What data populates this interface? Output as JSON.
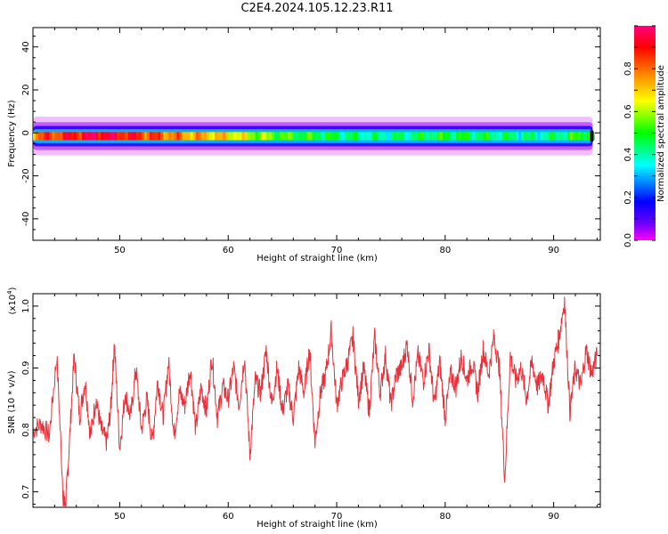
{
  "title": "C2E4.2024.105.12.23.R11",
  "chart_data": [
    {
      "type": "heatmap",
      "xlabel": "Height of straight line (km)",
      "ylabel": "Frequency (Hz)",
      "xlim": [
        42,
        94.3
      ],
      "ylim": [
        -50,
        49
      ],
      "xticks": [
        50,
        60,
        70,
        80,
        90
      ],
      "yticks": [
        -40,
        -20,
        0,
        20,
        40
      ],
      "band_center_hz": -1.5,
      "band_halfwidth_hz": 2.5,
      "colorbar": {
        "label": "Normalized spectral amplitude",
        "range": [
          0,
          1
        ],
        "ticks": [
          0.0,
          0.2,
          0.4,
          0.6,
          0.8
        ],
        "colormap": [
          "#ff00ff",
          "#6a00ff",
          "#0000ff",
          "#00ffff",
          "#00ff00",
          "#ffff00",
          "#ff8000",
          "#ff0000",
          "#ff0080"
        ]
      },
      "intensity_profile": [
        {
          "x": 42,
          "v": 0.8
        },
        {
          "x": 44,
          "v": 0.85
        },
        {
          "x": 46,
          "v": 0.9
        },
        {
          "x": 48,
          "v": 0.95
        },
        {
          "x": 50,
          "v": 0.9
        },
        {
          "x": 52,
          "v": 0.85
        },
        {
          "x": 54,
          "v": 0.8
        },
        {
          "x": 56,
          "v": 0.75
        },
        {
          "x": 58,
          "v": 0.72
        },
        {
          "x": 60,
          "v": 0.68
        },
        {
          "x": 62,
          "v": 0.6
        },
        {
          "x": 64,
          "v": 0.55
        },
        {
          "x": 66,
          "v": 0.5
        },
        {
          "x": 68,
          "v": 0.48
        },
        {
          "x": 70,
          "v": 0.45
        },
        {
          "x": 72,
          "v": 0.42
        },
        {
          "x": 74,
          "v": 0.4
        },
        {
          "x": 76,
          "v": 0.42
        },
        {
          "x": 78,
          "v": 0.45
        },
        {
          "x": 80,
          "v": 0.48
        },
        {
          "x": 82,
          "v": 0.46
        },
        {
          "x": 84,
          "v": 0.44
        },
        {
          "x": 86,
          "v": 0.42
        },
        {
          "x": 88,
          "v": 0.4
        },
        {
          "x": 90,
          "v": 0.42
        },
        {
          "x": 92,
          "v": 0.5
        },
        {
          "x": 94,
          "v": 0.55
        }
      ]
    },
    {
      "type": "line",
      "xlabel": "Height of straight line (km)",
      "ylabel": "SNR (10 * v/v)",
      "yscale_label": "(x10",
      "yscale_exp": "4",
      "xlim": [
        42,
        94.3
      ],
      "ylim": [
        0.675,
        1.02
      ],
      "xticks": [
        50,
        60,
        70,
        80,
        90
      ],
      "yticks": [
        0.7,
        0.8,
        0.9,
        1.0
      ],
      "color": "#e8313a",
      "series": [
        {
          "x": [
            42,
            42.8,
            43.5,
            44.2,
            44.8,
            45,
            45.3,
            45.8,
            46.3,
            46.8,
            47.3,
            47.8,
            48.3,
            48.8,
            49.2,
            49.5,
            50,
            50.5,
            51,
            51.5,
            52,
            52.5,
            53,
            53.5,
            54,
            54.5,
            55,
            55.5,
            56,
            56.5,
            57,
            57.5,
            58,
            58.5,
            59,
            59.5,
            60,
            60.5,
            61,
            61.5,
            62,
            62.5,
            63,
            63.5,
            64,
            64.5,
            65,
            65.5,
            66,
            66.5,
            67,
            67.5,
            68,
            68.5,
            69,
            69.5,
            70,
            70.5,
            71,
            71.5,
            72,
            72.5,
            73,
            73.5,
            74,
            74.5,
            75,
            75.5,
            76,
            76.5,
            77,
            77.5,
            78,
            78.5,
            79,
            79.5,
            80,
            80.5,
            81,
            81.5,
            82,
            82.5,
            83,
            83.5,
            84,
            84.5,
            85,
            85.5,
            86,
            86.5,
            87,
            87.5,
            88,
            88.5,
            89,
            89.5,
            90,
            90.5,
            91,
            91.5,
            92,
            92.5,
            93,
            93.5,
            94
          ],
          "y": [
            0.8,
            0.81,
            0.79,
            0.92,
            0.69,
            0.675,
            0.76,
            0.92,
            0.82,
            0.88,
            0.79,
            0.85,
            0.8,
            0.78,
            0.84,
            0.94,
            0.77,
            0.86,
            0.82,
            0.9,
            0.8,
            0.85,
            0.78,
            0.88,
            0.82,
            0.91,
            0.79,
            0.86,
            0.84,
            0.9,
            0.8,
            0.87,
            0.83,
            0.92,
            0.82,
            0.87,
            0.85,
            0.9,
            0.84,
            0.92,
            0.76,
            0.88,
            0.86,
            0.93,
            0.84,
            0.9,
            0.83,
            0.87,
            0.82,
            0.9,
            0.86,
            0.93,
            0.78,
            0.86,
            0.89,
            0.96,
            0.84,
            0.88,
            0.91,
            0.95,
            0.85,
            0.9,
            0.83,
            0.95,
            0.86,
            0.92,
            0.84,
            0.89,
            0.9,
            0.94,
            0.85,
            0.92,
            0.88,
            0.93,
            0.84,
            0.91,
            0.82,
            0.89,
            0.87,
            0.92,
            0.88,
            0.91,
            0.86,
            0.93,
            0.89,
            0.95,
            0.9,
            0.72,
            0.92,
            0.88,
            0.9,
            0.85,
            0.91,
            0.87,
            0.89,
            0.84,
            0.91,
            0.95,
            1.01,
            0.83,
            0.9,
            0.87,
            0.93,
            0.89,
            0.92
          ]
        }
      ]
    }
  ]
}
